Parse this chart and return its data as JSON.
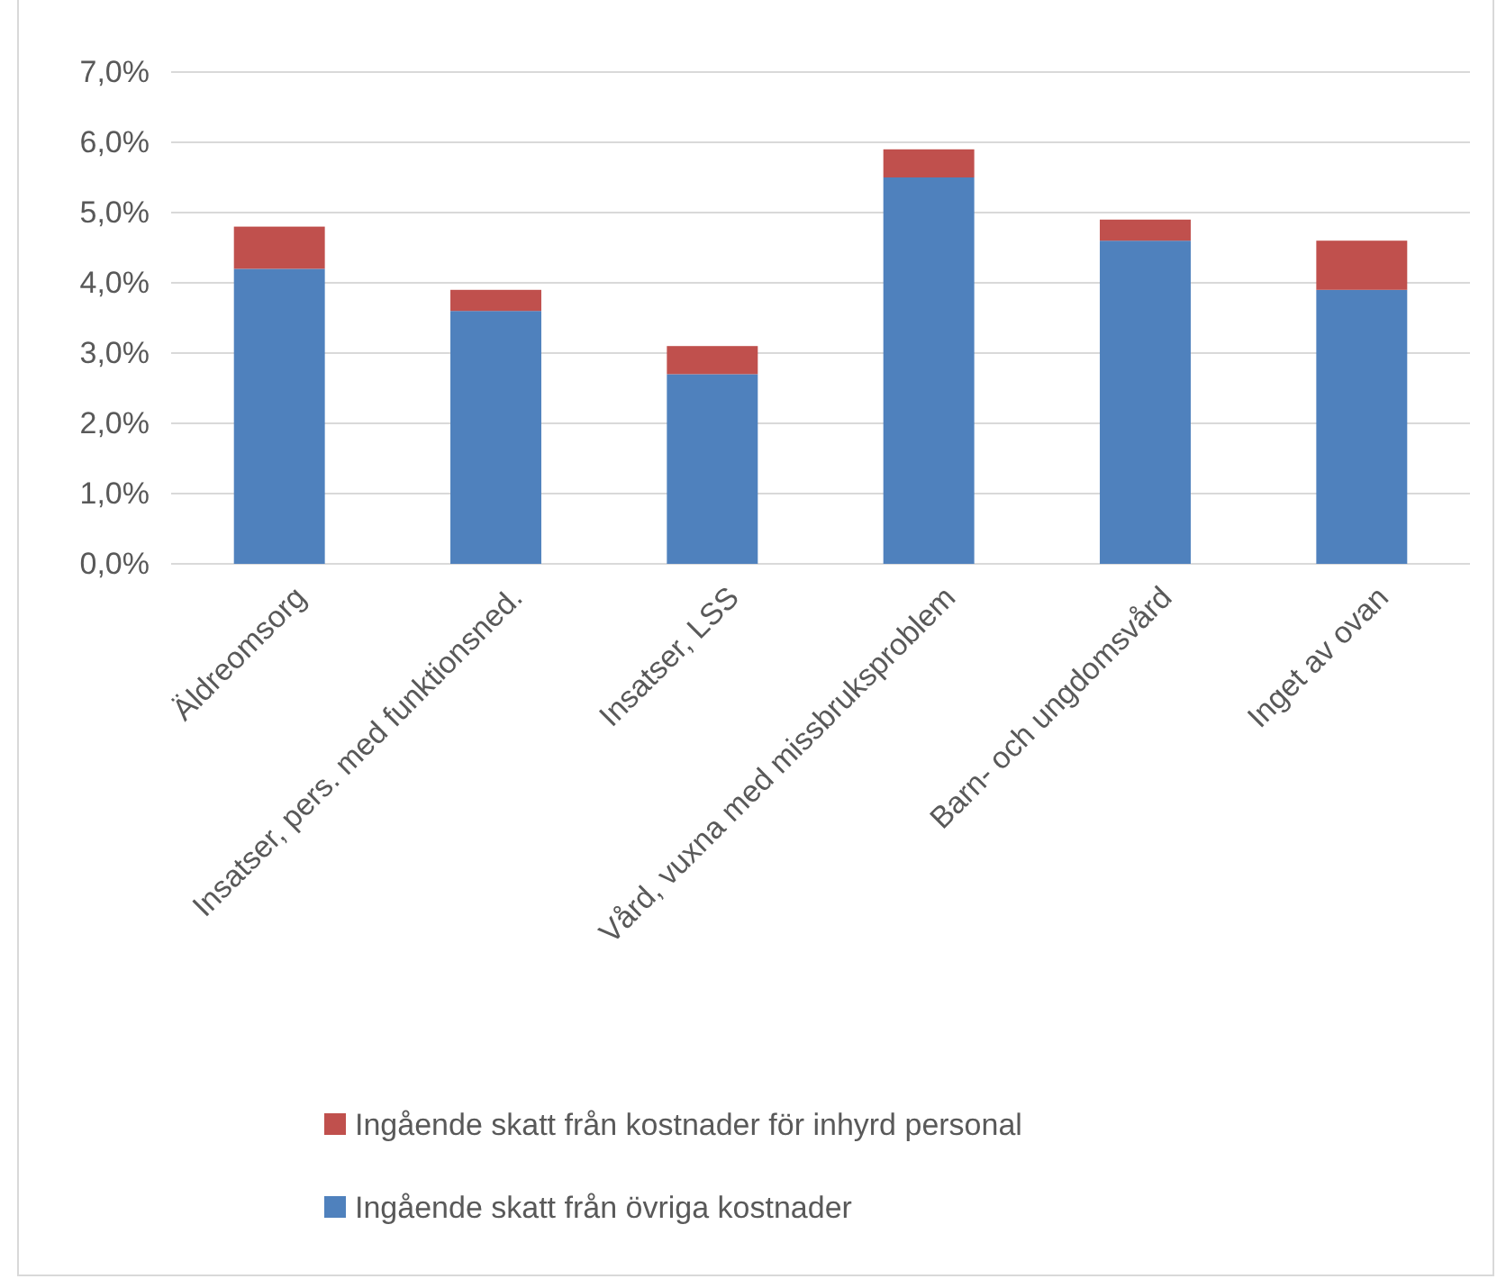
{
  "chart_data": {
    "type": "bar",
    "stacked": true,
    "categories": [
      "Äldreomsorg",
      "Insatser, pers. med funktionsned.",
      "Insatser, LSS",
      "Vård, vuxna med missbruksproblem",
      "Barn- och ungdomsvård",
      "Inget av ovan"
    ],
    "series": [
      {
        "name": "Ingående skatt från övriga kostnader",
        "color": "#4f81bd",
        "values": [
          4.2,
          3.6,
          2.7,
          5.5,
          4.6,
          3.9
        ]
      },
      {
        "name": "Ingående skatt från kostnader för inhyrd personal",
        "color": "#c0504d",
        "values": [
          0.6,
          0.3,
          0.4,
          0.4,
          0.3,
          0.7
        ]
      }
    ],
    "ylim": [
      0,
      7
    ],
    "yticks": [
      {
        "value": 0,
        "label": "0,0%"
      },
      {
        "value": 1,
        "label": "1,0%"
      },
      {
        "value": 2,
        "label": "2,0%"
      },
      {
        "value": 3,
        "label": "3,0%"
      },
      {
        "value": 4,
        "label": "4,0%"
      },
      {
        "value": 5,
        "label": "5,0%"
      },
      {
        "value": 6,
        "label": "6,0%"
      },
      {
        "value": 7,
        "label": "7,0%"
      }
    ],
    "grid": "y",
    "legend": "bottom"
  }
}
